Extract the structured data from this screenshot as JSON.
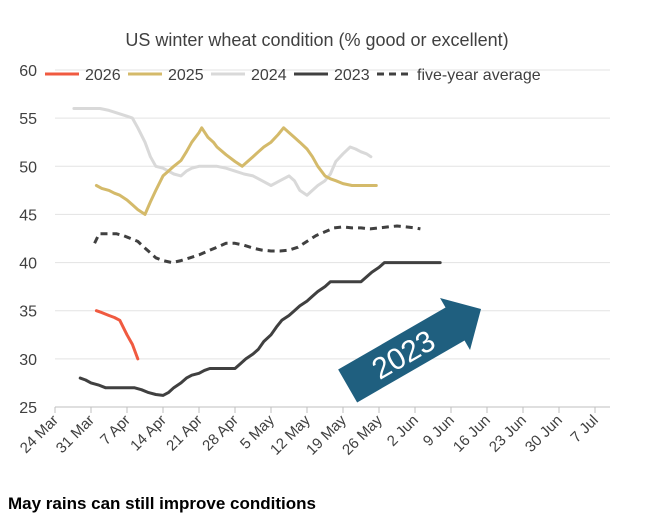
{
  "caption": "May rains can still improve conditions",
  "chart_data": {
    "type": "line",
    "title": "US winter wheat condition (% good or excellent)",
    "xlabel": "",
    "ylabel": "",
    "ylim": [
      25,
      60
    ],
    "yticks": [
      25,
      30,
      35,
      40,
      45,
      50,
      55,
      60
    ],
    "xticks": [
      "24 Mar",
      "31 Mar",
      "7 Apr",
      "14 Apr",
      "21 Apr",
      "28 Apr",
      "5 May",
      "12 May",
      "19 May",
      "26 May",
      "2 Jun",
      "9 Jun",
      "16 Jun",
      "23 Jun",
      "30 Jun",
      "7 Jul"
    ],
    "grid": "horizontal",
    "legend_position": "top",
    "series": [
      {
        "name": "2026",
        "color": "#F05A40",
        "dash": "solid",
        "points": [
          [
            2.3,
            35
          ],
          [
            2.6,
            34.8
          ],
          [
            3.0,
            34.5
          ],
          [
            3.3,
            34.3
          ],
          [
            3.6,
            34.0
          ],
          [
            4.0,
            32.5
          ],
          [
            4.3,
            31.5
          ],
          [
            4.6,
            30.0
          ]
        ]
      },
      {
        "name": "2025",
        "color": "#D4BA6A",
        "dash": "solid",
        "points": [
          [
            2.3,
            48
          ],
          [
            2.6,
            47.7
          ],
          [
            3.0,
            47.5
          ],
          [
            3.3,
            47.2
          ],
          [
            3.6,
            47.0
          ],
          [
            4.0,
            46.5
          ],
          [
            4.3,
            46
          ],
          [
            4.6,
            45.5
          ],
          [
            5.0,
            45
          ],
          [
            5.3,
            46.3
          ],
          [
            5.6,
            47.5
          ],
          [
            6.0,
            49
          ],
          [
            6.3,
            49.5
          ],
          [
            6.6,
            50
          ],
          [
            7.0,
            50.6
          ],
          [
            7.3,
            51.5
          ],
          [
            7.6,
            52.5
          ],
          [
            8.0,
            53.5
          ],
          [
            8.15,
            54
          ],
          [
            8.5,
            53
          ],
          [
            8.8,
            52.5
          ],
          [
            9.0,
            52
          ],
          [
            9.5,
            51.2
          ],
          [
            10.0,
            50.5
          ],
          [
            10.4,
            50
          ],
          [
            10.7,
            50.5
          ],
          [
            11.0,
            51
          ],
          [
            11.3,
            51.5
          ],
          [
            11.6,
            52
          ],
          [
            12.0,
            52.5
          ],
          [
            12.4,
            53.3
          ],
          [
            12.7,
            54
          ],
          [
            13.0,
            53.5
          ],
          [
            13.3,
            53
          ],
          [
            13.6,
            52.5
          ],
          [
            14.0,
            51.8
          ],
          [
            14.3,
            51
          ],
          [
            14.6,
            50
          ],
          [
            15.0,
            49
          ],
          [
            15.3,
            48.7
          ],
          [
            15.6,
            48.5
          ],
          [
            16.0,
            48.2
          ],
          [
            16.5,
            48
          ],
          [
            17.0,
            48
          ],
          [
            17.5,
            48
          ],
          [
            17.85,
            48
          ]
        ]
      },
      {
        "name": "2024",
        "color": "#D9D9D9",
        "dash": "solid",
        "points": [
          [
            1.05,
            56
          ],
          [
            1.5,
            56
          ],
          [
            2.0,
            56
          ],
          [
            2.5,
            56
          ],
          [
            3.0,
            55.8
          ],
          [
            3.5,
            55.5
          ],
          [
            4.0,
            55.2
          ],
          [
            4.3,
            55
          ],
          [
            4.6,
            54
          ],
          [
            5.0,
            52.5
          ],
          [
            5.3,
            51
          ],
          [
            5.6,
            50
          ],
          [
            6.0,
            49.8
          ],
          [
            6.3,
            49.5
          ],
          [
            6.6,
            49.2
          ],
          [
            7.0,
            49
          ],
          [
            7.3,
            49.5
          ],
          [
            7.6,
            49.8
          ],
          [
            8.0,
            50
          ],
          [
            8.5,
            50
          ],
          [
            9.0,
            50
          ],
          [
            9.5,
            49.8
          ],
          [
            10.0,
            49.5
          ],
          [
            10.5,
            49.2
          ],
          [
            11.0,
            49
          ],
          [
            11.5,
            48.5
          ],
          [
            12.0,
            48
          ],
          [
            12.5,
            48.5
          ],
          [
            13.0,
            49
          ],
          [
            13.3,
            48.5
          ],
          [
            13.6,
            47.5
          ],
          [
            14.0,
            47
          ],
          [
            14.3,
            47.5
          ],
          [
            14.6,
            48
          ],
          [
            15.0,
            48.5
          ],
          [
            15.3,
            49.2
          ],
          [
            15.6,
            50.5
          ],
          [
            16.0,
            51.3
          ],
          [
            16.4,
            52
          ],
          [
            16.7,
            51.8
          ],
          [
            17.0,
            51.5
          ],
          [
            17.3,
            51.3
          ],
          [
            17.55,
            51
          ]
        ]
      },
      {
        "name": "2023",
        "color": "#404040",
        "dash": "solid",
        "points": [
          [
            1.4,
            28
          ],
          [
            1.7,
            27.8
          ],
          [
            2.0,
            27.5
          ],
          [
            2.4,
            27.3
          ],
          [
            2.8,
            27
          ],
          [
            3.2,
            27
          ],
          [
            3.6,
            27
          ],
          [
            4.0,
            27
          ],
          [
            4.4,
            27
          ],
          [
            4.8,
            26.8
          ],
          [
            5.2,
            26.5
          ],
          [
            5.6,
            26.3
          ],
          [
            6.0,
            26.2
          ],
          [
            6.3,
            26.5
          ],
          [
            6.6,
            27
          ],
          [
            7.0,
            27.5
          ],
          [
            7.3,
            28
          ],
          [
            7.6,
            28.3
          ],
          [
            8.0,
            28.5
          ],
          [
            8.3,
            28.8
          ],
          [
            8.6,
            29
          ],
          [
            9.0,
            29
          ],
          [
            9.5,
            29
          ],
          [
            10.0,
            29
          ],
          [
            10.3,
            29.5
          ],
          [
            10.6,
            30
          ],
          [
            11.0,
            30.5
          ],
          [
            11.3,
            31
          ],
          [
            11.6,
            31.8
          ],
          [
            12.0,
            32.5
          ],
          [
            12.3,
            33.3
          ],
          [
            12.6,
            34
          ],
          [
            13.0,
            34.5
          ],
          [
            13.3,
            35
          ],
          [
            13.6,
            35.5
          ],
          [
            14.0,
            36
          ],
          [
            14.3,
            36.5
          ],
          [
            14.6,
            37
          ],
          [
            15.0,
            37.5
          ],
          [
            15.3,
            38
          ],
          [
            15.6,
            38
          ],
          [
            16.0,
            38
          ],
          [
            16.3,
            38
          ],
          [
            16.6,
            38
          ],
          [
            17.0,
            38
          ],
          [
            17.3,
            38.5
          ],
          [
            17.6,
            39
          ],
          [
            18.0,
            39.5
          ],
          [
            18.3,
            40
          ],
          [
            18.7,
            40
          ],
          [
            19.0,
            40
          ],
          [
            19.5,
            40
          ],
          [
            20.0,
            40
          ],
          [
            20.5,
            40
          ],
          [
            21.0,
            40
          ],
          [
            21.4,
            40
          ]
        ]
      },
      {
        "name": "five-year average",
        "color": "#404040",
        "dash": "dashed",
        "points": [
          [
            2.2,
            42
          ],
          [
            2.45,
            43
          ],
          [
            3.0,
            43
          ],
          [
            3.4,
            43
          ],
          [
            3.8,
            42.8
          ],
          [
            4.2,
            42.5
          ],
          [
            4.6,
            42.2
          ],
          [
            5.0,
            41.5
          ],
          [
            5.3,
            41
          ],
          [
            5.6,
            40.5
          ],
          [
            6.0,
            40.2
          ],
          [
            6.5,
            40
          ],
          [
            7.0,
            40.2
          ],
          [
            7.5,
            40.5
          ],
          [
            8.0,
            40.8
          ],
          [
            8.5,
            41.2
          ],
          [
            9.0,
            41.6
          ],
          [
            9.5,
            42
          ],
          [
            10.0,
            42
          ],
          [
            10.5,
            41.8
          ],
          [
            11.0,
            41.5
          ],
          [
            11.5,
            41.3
          ],
          [
            12.0,
            41.2
          ],
          [
            12.5,
            41.2
          ],
          [
            13.0,
            41.3
          ],
          [
            13.5,
            41.6
          ],
          [
            14.0,
            42.2
          ],
          [
            14.5,
            42.8
          ],
          [
            15.0,
            43.2
          ],
          [
            15.5,
            43.6
          ],
          [
            16.0,
            43.7
          ],
          [
            16.5,
            43.6
          ],
          [
            17.0,
            43.6
          ],
          [
            17.5,
            43.5
          ],
          [
            18.0,
            43.6
          ],
          [
            18.5,
            43.7
          ],
          [
            19.0,
            43.8
          ],
          [
            19.5,
            43.7
          ],
          [
            20.0,
            43.6
          ],
          [
            20.3,
            43.5
          ]
        ]
      }
    ],
    "annotations": [
      {
        "text": "2023",
        "type": "arrow",
        "color": "#1F5F7F",
        "text_color": "#ffffff"
      }
    ]
  }
}
